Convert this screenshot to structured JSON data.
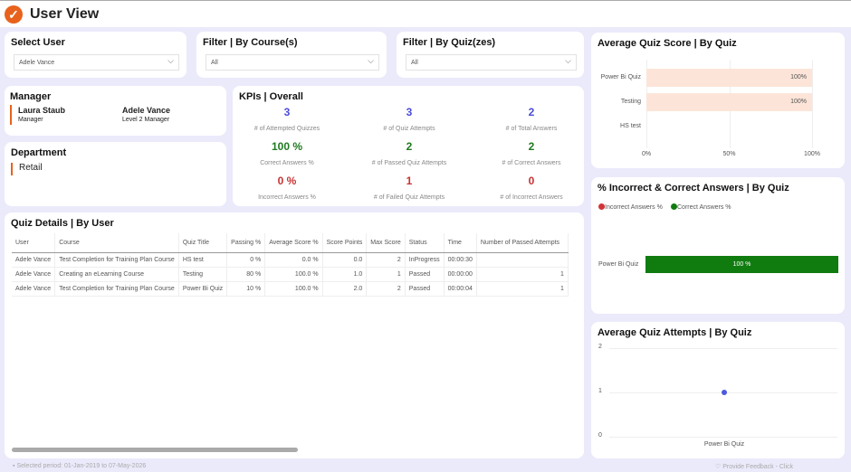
{
  "header": {
    "title": "User View",
    "logo_icon": "checkmark-logo-icon"
  },
  "filters": {
    "user": {
      "title": "Select User",
      "value": "Adele Vance"
    },
    "course": {
      "title": "Filter | By Course(s)",
      "value": "All"
    },
    "quiz": {
      "title": "Filter | By Quiz(zes)",
      "value": "All"
    }
  },
  "manager": {
    "title": "Manager",
    "people": [
      {
        "name": "Laura Staub",
        "role": "Manager"
      },
      {
        "name": "Adele Vance",
        "role": "Level 2 Manager"
      }
    ]
  },
  "department": {
    "title": "Department",
    "value": "Retail"
  },
  "kpis": {
    "title": "KPIs | Overall",
    "items": [
      {
        "value": "3",
        "label": "# of Attempted Quizzes",
        "color": "#4b4bd8"
      },
      {
        "value": "3",
        "label": "# of Quiz Attempts",
        "color": "#4b4bd8"
      },
      {
        "value": "2",
        "label": "# of Total Answers",
        "color": "#4b4bd8"
      },
      {
        "value": "100 %",
        "label": "Correct Answers %",
        "color": "#1f7a1f"
      },
      {
        "value": "2",
        "label": "# of Passed Quiz Attempts",
        "color": "#1f7a1f"
      },
      {
        "value": "2",
        "label": "# of Correct Answers",
        "color": "#1f7a1f"
      },
      {
        "value": "0 %",
        "label": "Incorrect Answers %",
        "color": "#c83232"
      },
      {
        "value": "1",
        "label": "# of Failed Quiz Attempts",
        "color": "#c83232"
      },
      {
        "value": "0",
        "label": "# of Incorrect Answers",
        "color": "#c83232"
      }
    ]
  },
  "quiz_details": {
    "title": "Quiz Details | By User",
    "columns": [
      "User",
      "Course",
      "Quiz Title",
      "Passing %",
      "Average Score %",
      "Score Points",
      "Max Score",
      "Status",
      "Time",
      "Number of Passed Attempts"
    ],
    "rows": [
      [
        "Adele Vance",
        "Test Completion for Training Plan Course",
        "HS test",
        "0 %",
        "0.0 %",
        "0.0",
        "2",
        "InProgress",
        "00:00:30",
        ""
      ],
      [
        "Adele Vance",
        "Creating an eLearning Course",
        "Testing",
        "80 %",
        "100.0 %",
        "1.0",
        "1",
        "Passed",
        "00:00:00",
        "1"
      ],
      [
        "Adele Vance",
        "Test Completion for Training Plan Course",
        "Power Bi Quiz",
        "10 %",
        "100.0 %",
        "2.0",
        "2",
        "Passed",
        "00:00:04",
        "1"
      ]
    ]
  },
  "chart_data": [
    {
      "type": "bar",
      "title": "Average Quiz Score | By Quiz",
      "categories": [
        "Power Bi Quiz",
        "Testing",
        "HS test"
      ],
      "values": [
        100,
        100,
        0
      ],
      "labels": [
        "100%",
        "100%",
        ""
      ],
      "xlim": [
        0,
        100
      ],
      "ticks": [
        "0%",
        "50%",
        "100%"
      ],
      "color": "#fce5d8"
    },
    {
      "type": "bar",
      "title": "% Incorrect & Correct Answers | By Quiz",
      "legend": [
        {
          "name": "Incorrect Answers %",
          "color": "#d13438"
        },
        {
          "name": "Correct Answers %",
          "color": "#107c10"
        }
      ],
      "categories": [
        "Power Bi Quiz"
      ],
      "series": [
        {
          "name": "Incorrect Answers %",
          "values": [
            0
          ]
        },
        {
          "name": "Correct Answers %",
          "values": [
            100
          ]
        }
      ],
      "labels": [
        "100 %"
      ]
    },
    {
      "type": "scatter",
      "title": "Average Quiz Attempts | By Quiz",
      "categories": [
        "Power Bi Quiz"
      ],
      "values": [
        1
      ],
      "ylim": [
        0,
        2
      ],
      "yticks": [
        "2",
        "1",
        "0"
      ],
      "color": "#4b5bdc"
    }
  ],
  "footer": {
    "period": "Selected period: 01-Jan-2019 to 07-May-2026",
    "feedback": "Provide Feedback - Click"
  }
}
